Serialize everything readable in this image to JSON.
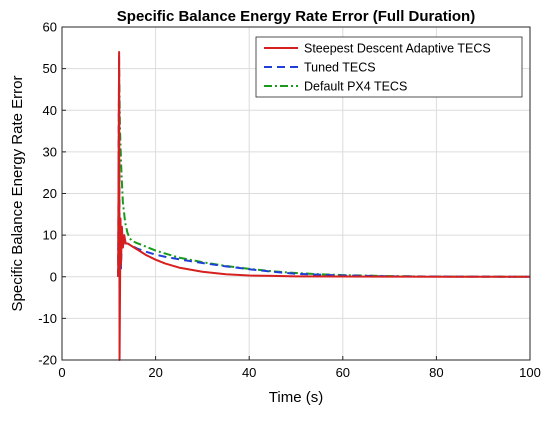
{
  "chart_data": {
    "type": "line",
    "title": "Specific Balance Energy Rate Error (Full Duration)",
    "xlabel": "Time (s)",
    "ylabel": "Specific Balance Energy Rate Error",
    "xlim": [
      0,
      100
    ],
    "ylim": [
      -20,
      60
    ],
    "x_ticks": [
      0,
      20,
      40,
      60,
      80,
      100
    ],
    "y_ticks": [
      -20,
      -10,
      0,
      10,
      20,
      30,
      40,
      50,
      60
    ],
    "grid": true,
    "legend_position": "top-right",
    "series": [
      {
        "name": "Steepest Descent Adaptive TECS",
        "color": "#d62020",
        "dash": "solid",
        "x": [
          12.0,
          12.2,
          12.3,
          12.5,
          12.6,
          12.8,
          13.0,
          13.3,
          13.6,
          14,
          15,
          16,
          18,
          20,
          22,
          25,
          30,
          35,
          40,
          45,
          50,
          60,
          70,
          80,
          100
        ],
        "y": [
          0,
          54,
          -20,
          14,
          3,
          12,
          7,
          10,
          8,
          8,
          7.3,
          6.6,
          5.2,
          4.1,
          3.2,
          2.2,
          1.2,
          0.6,
          0.3,
          0.2,
          0.1,
          0.05,
          0.02,
          0.01,
          0
        ]
      },
      {
        "name": "Tuned TECS",
        "color": "#1f3fd8",
        "dash": "dashed",
        "x": [
          12.0,
          12.2,
          12.3,
          12.5,
          12.6,
          12.8,
          13.0,
          13.3,
          13.6,
          14,
          15,
          16,
          18,
          20,
          22,
          25,
          30,
          35,
          40,
          45,
          50,
          60,
          70,
          80,
          100
        ],
        "y": [
          0,
          53,
          -6,
          13,
          2,
          10,
          7,
          9.5,
          8,
          8,
          7.4,
          6.8,
          6.0,
          5.3,
          4.8,
          4.2,
          3.3,
          2.5,
          1.8,
          1.2,
          0.7,
          0.3,
          0.1,
          0.05,
          0
        ]
      },
      {
        "name": "Default PX4 TECS",
        "color": "#1a9a1a",
        "dash": "dashdot",
        "x": [
          12.0,
          12.2,
          12.4,
          12.7,
          13.0,
          13.5,
          14,
          14.5,
          15,
          16,
          18,
          20,
          22,
          25,
          30,
          35,
          40,
          45,
          50,
          55,
          60,
          70,
          80,
          100
        ],
        "y": [
          0,
          50,
          35,
          25,
          18,
          13,
          10.5,
          9.2,
          8.6,
          8.1,
          7.2,
          6.3,
          5.6,
          4.6,
          3.5,
          2.6,
          1.9,
          1.3,
          0.9,
          0.6,
          0.4,
          0.15,
          0.05,
          0
        ]
      }
    ]
  }
}
